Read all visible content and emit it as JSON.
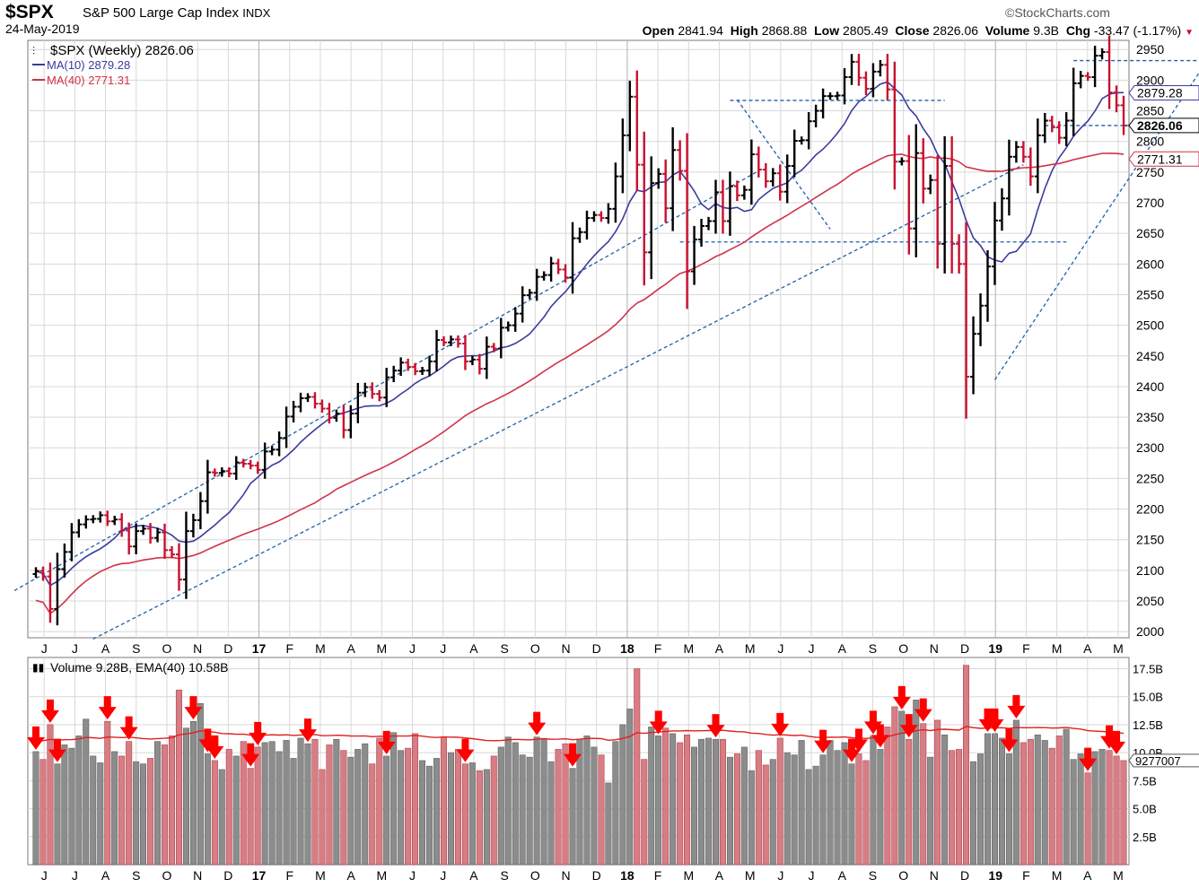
{
  "header": {
    "ticker": "$SPX",
    "name": "S&P 500 Large Cap Index",
    "exchange": "INDX",
    "date": "24-May-2019",
    "brand": "StockCharts.com",
    "open_label": "Open",
    "open": "2841.94",
    "high_label": "High",
    "high": "2868.88",
    "low_label": "Low",
    "low": "2805.49",
    "close_label": "Close",
    "close": "2826.06",
    "volume_label": "Volume",
    "volume": "9.3B",
    "chg_label": "Chg",
    "chg": "-33.47 (-1.17%)"
  },
  "legend": {
    "series": "$SPX (Weekly) 2826.06",
    "ma10": "MA(10) 2879.28",
    "ma40": "MA(40) 2771.31",
    "volume": "Volume 9.28B, EMA(40) 10.58B"
  },
  "chart_data": {
    "type": "ohlc-weekly-with-volume",
    "colors": {
      "up": "#000000",
      "down": "#c8102e",
      "ma10": "#3b3b9e",
      "ma40": "#d0324a",
      "trend": "#1f5fa8",
      "vol_up": "#8c8c8c",
      "vol_down": "#d77d84",
      "arrow": "#ff0000",
      "grid": "#d8d8d8"
    },
    "price_axis": {
      "ticks": [
        2000,
        2050,
        2100,
        2150,
        2200,
        2250,
        2300,
        2350,
        2400,
        2450,
        2500,
        2550,
        2600,
        2650,
        2700,
        2750,
        2800,
        2850,
        2900,
        2950
      ],
      "range": [
        1990,
        2965
      ]
    },
    "price_tags": [
      {
        "value": 2879.28,
        "label": "2879.28",
        "color": "#3b3b9e"
      },
      {
        "value": 2826.06,
        "label": "2826.06",
        "color": "#000000"
      },
      {
        "value": 2771.31,
        "label": "2771.31",
        "color": "#d0324a"
      }
    ],
    "volume_axis": {
      "ticks": [
        2.5,
        5.0,
        7.5,
        10.0,
        12.5,
        15.0,
        17.5
      ],
      "labels": [
        "2.5B",
        "5.0B",
        "7.5B",
        "10.0B",
        "12.5B",
        "15.0B",
        "17.5B"
      ],
      "range": [
        0,
        18.5
      ],
      "last_tag": "9277007"
    },
    "months": [
      "J",
      "J",
      "A",
      "S",
      "O",
      "N",
      "D",
      "17",
      "F",
      "M",
      "A",
      "M",
      "J",
      "J",
      "A",
      "S",
      "O",
      "N",
      "D",
      "18",
      "F",
      "M",
      "A",
      "M",
      "J",
      "J",
      "A",
      "S",
      "O",
      "N",
      "D",
      "19",
      "F",
      "M",
      "A",
      "M"
    ],
    "closes": [
      2099,
      2090,
      2037,
      2102,
      2130,
      2162,
      2175,
      2183,
      2184,
      2190,
      2180,
      2183,
      2165,
      2139,
      2164,
      2168,
      2153,
      2162,
      2133,
      2126,
      2085,
      2164,
      2182,
      2213,
      2260,
      2259,
      2262,
      2258,
      2276,
      2274,
      2271,
      2264,
      2294,
      2297,
      2316,
      2351,
      2367,
      2381,
      2383,
      2372,
      2364,
      2349,
      2356,
      2329,
      2356,
      2390,
      2399,
      2388,
      2382,
      2415,
      2426,
      2439,
      2432,
      2425,
      2426,
      2441,
      2476,
      2472,
      2477,
      2470,
      2441,
      2444,
      2429,
      2465,
      2462,
      2496,
      2500,
      2519,
      2549,
      2553,
      2579,
      2582,
      2601,
      2591,
      2578,
      2642,
      2652,
      2675,
      2680,
      2675,
      2690,
      2743,
      2810,
      2873,
      2762,
      2619,
      2732,
      2747,
      2691,
      2786,
      2752,
      2588,
      2640,
      2662,
      2670,
      2717,
      2670,
      2727,
      2712,
      2721,
      2779,
      2754,
      2735,
      2748,
      2718,
      2760,
      2801,
      2802,
      2833,
      2850,
      2874,
      2874,
      2875,
      2905,
      2930,
      2904,
      2886,
      2914,
      2925,
      2885,
      2767,
      2768,
      2658,
      2781,
      2723,
      2737,
      2633,
      2760,
      2633,
      2600,
      2416,
      2486,
      2532,
      2596,
      2671,
      2707,
      2775,
      2791,
      2775,
      2743,
      2810,
      2834,
      2823,
      2806,
      2834,
      2895,
      2907,
      2905,
      2940,
      2946,
      2880,
      2859,
      2826
    ],
    "volumes": [
      10.1,
      9.4,
      12.5,
      9.0,
      10.7,
      10.4,
      11.5,
      13.0,
      9.7,
      9.1,
      12.8,
      10.1,
      9.7,
      11.0,
      9.2,
      9.0,
      9.5,
      11.0,
      10.7,
      11.5,
      15.6,
      12.2,
      12.8,
      14.4,
      9.9,
      9.3,
      8.5,
      10.3,
      9.7,
      11.0,
      8.6,
      10.5,
      10.9,
      11.0,
      10.1,
      11.1,
      9.5,
      11.3,
      10.8,
      11.2,
      8.5,
      10.7,
      11.2,
      10.2,
      9.6,
      10.3,
      10.8,
      9.0,
      11.3,
      9.7,
      11.8,
      10.2,
      10.4,
      11.7,
      9.3,
      8.8,
      9.5,
      11.4,
      10.0,
      10.3,
      9.0,
      9.1,
      8.4,
      8.5,
      9.7,
      10.5,
      11.4,
      10.9,
      9.8,
      9.6,
      11.4,
      11.2,
      9.2,
      10.3,
      10.8,
      8.6,
      11.2,
      11.5,
      10.5,
      9.8,
      7.3,
      11.0,
      12.5,
      13.9,
      17.5,
      9.4,
      12.3,
      11.5,
      12.2,
      11.7,
      10.9,
      11.6,
      10.5,
      11.2,
      11.3,
      11.2,
      11.2,
      9.6,
      9.9,
      10.5,
      8.4,
      10.2,
      8.9,
      9.4,
      11.3,
      10.0,
      9.8,
      11.1,
      8.5,
      8.8,
      9.8,
      11.1,
      10.2,
      10.9,
      9.0,
      9.9,
      9.3,
      11.5,
      10.3,
      12.3,
      14.1,
      13.7,
      11.2,
      14.7,
      12.6,
      9.6,
      12.9,
      11.6,
      10.2,
      10.3,
      17.8,
      9.2,
      9.9,
      11.7,
      11.7,
      11.3,
      9.9,
      12.9,
      10.9,
      11.2,
      11.6,
      11.1,
      10.4,
      11.5,
      12.1,
      9.4,
      9.9,
      8.2,
      10.1,
      10.3,
      10.2,
      9.7,
      9.3
    ],
    "arrows_at_weeks": [
      0,
      2,
      3,
      10,
      13,
      22,
      24,
      25,
      30,
      31,
      38,
      49,
      60,
      70,
      75,
      87,
      95,
      104,
      110,
      114,
      115,
      117,
      118,
      121,
      122,
      124,
      133,
      134,
      136,
      137,
      147,
      150,
      151,
      154
    ],
    "trendlines": [
      {
        "from": [
          -3,
          2067
        ],
        "to": [
          101,
          2752
        ],
        "style": "dashed"
      },
      {
        "from": [
          8,
          1988
        ],
        "to": [
          138,
          2762
        ],
        "style": "dashed"
      },
      {
        "from": [
          98,
          2868
        ],
        "to": [
          111,
          2657
        ],
        "style": "dashed"
      },
      {
        "from": [
          134,
          2411
        ],
        "to": [
          165,
          2955
        ],
        "style": "dashed"
      },
      {
        "from": [
          97,
          2867
        ],
        "to": [
          127,
          2867
        ],
        "style": "dashed"
      },
      {
        "from": [
          145,
          2932
        ],
        "to": [
          176,
          2932
        ],
        "style": "dashed"
      },
      {
        "from": [
          141,
          2826
        ],
        "to": [
          170,
          2826
        ],
        "style": "dashed"
      },
      {
        "from": [
          90,
          2636
        ],
        "to": [
          144,
          2636
        ],
        "style": "dashed"
      }
    ]
  }
}
